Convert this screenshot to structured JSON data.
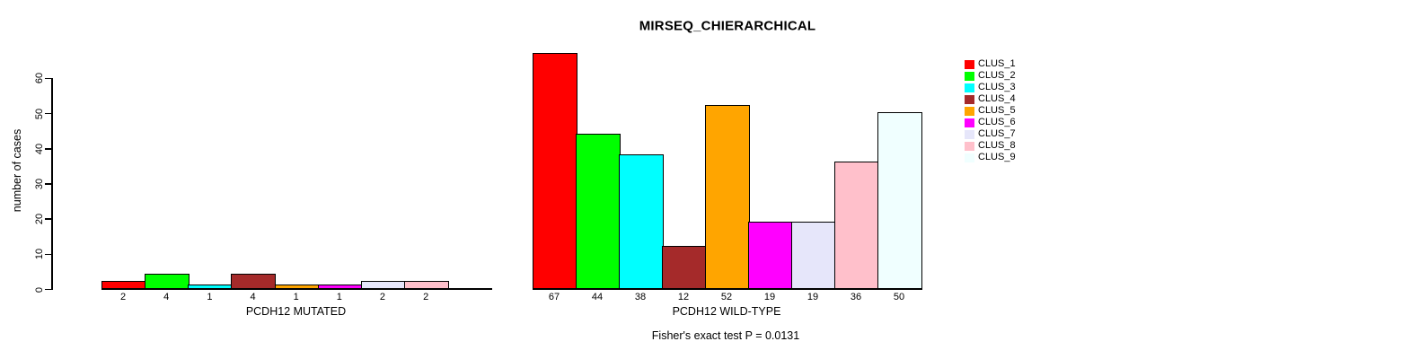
{
  "title": "MIRSEQ_CHIERARCHICAL",
  "chart_data": {
    "type": "bar",
    "title": "MIRSEQ_CHIERARCHICAL",
    "ylabel": "number of cases",
    "ylim": [
      0,
      60
    ],
    "yticks": [
      0,
      10,
      20,
      30,
      40,
      50,
      60
    ],
    "grid": false,
    "legend_position": "right",
    "series_names": [
      "CLUS_1",
      "CLUS_2",
      "CLUS_3",
      "CLUS_4",
      "CLUS_5",
      "CLUS_6",
      "CLUS_7",
      "CLUS_8",
      "CLUS_9"
    ],
    "colors": [
      "#ff0000",
      "#00ff00",
      "#00ffff",
      "#a52a2a",
      "#ffa500",
      "#ff00ff",
      "#e6e6fa",
      "#ffc0cb",
      "#f0ffff"
    ],
    "groups": [
      {
        "label": "PCDH12 MUTATED",
        "values": [
          2,
          4,
          1,
          4,
          1,
          1,
          2,
          2,
          0
        ],
        "value_labels": [
          "2",
          "4",
          "1",
          "4",
          "1",
          "1",
          "2",
          "2",
          ""
        ]
      },
      {
        "label": "PCDH12 WILD-TYPE",
        "values": [
          67,
          44,
          38,
          12,
          52,
          19,
          19,
          36,
          50
        ],
        "value_labels": [
          "67",
          "44",
          "38",
          "12",
          "52",
          "19",
          "19",
          "36",
          "50"
        ]
      }
    ],
    "annotation": "Fisher's exact test P = 0.0131"
  },
  "legend": {
    "items": [
      {
        "label": "CLUS_1",
        "color": "#ff0000"
      },
      {
        "label": "CLUS_2",
        "color": "#00ff00"
      },
      {
        "label": "CLUS_3",
        "color": "#00ffff"
      },
      {
        "label": "CLUS_4",
        "color": "#a52a2a"
      },
      {
        "label": "CLUS_5",
        "color": "#ffa500"
      },
      {
        "label": "CLUS_6",
        "color": "#ff00ff"
      },
      {
        "label": "CLUS_7",
        "color": "#e6e6fa"
      },
      {
        "label": "CLUS_8",
        "color": "#ffc0cb"
      },
      {
        "label": "CLUS_9",
        "color": "#f0ffff"
      }
    ]
  }
}
